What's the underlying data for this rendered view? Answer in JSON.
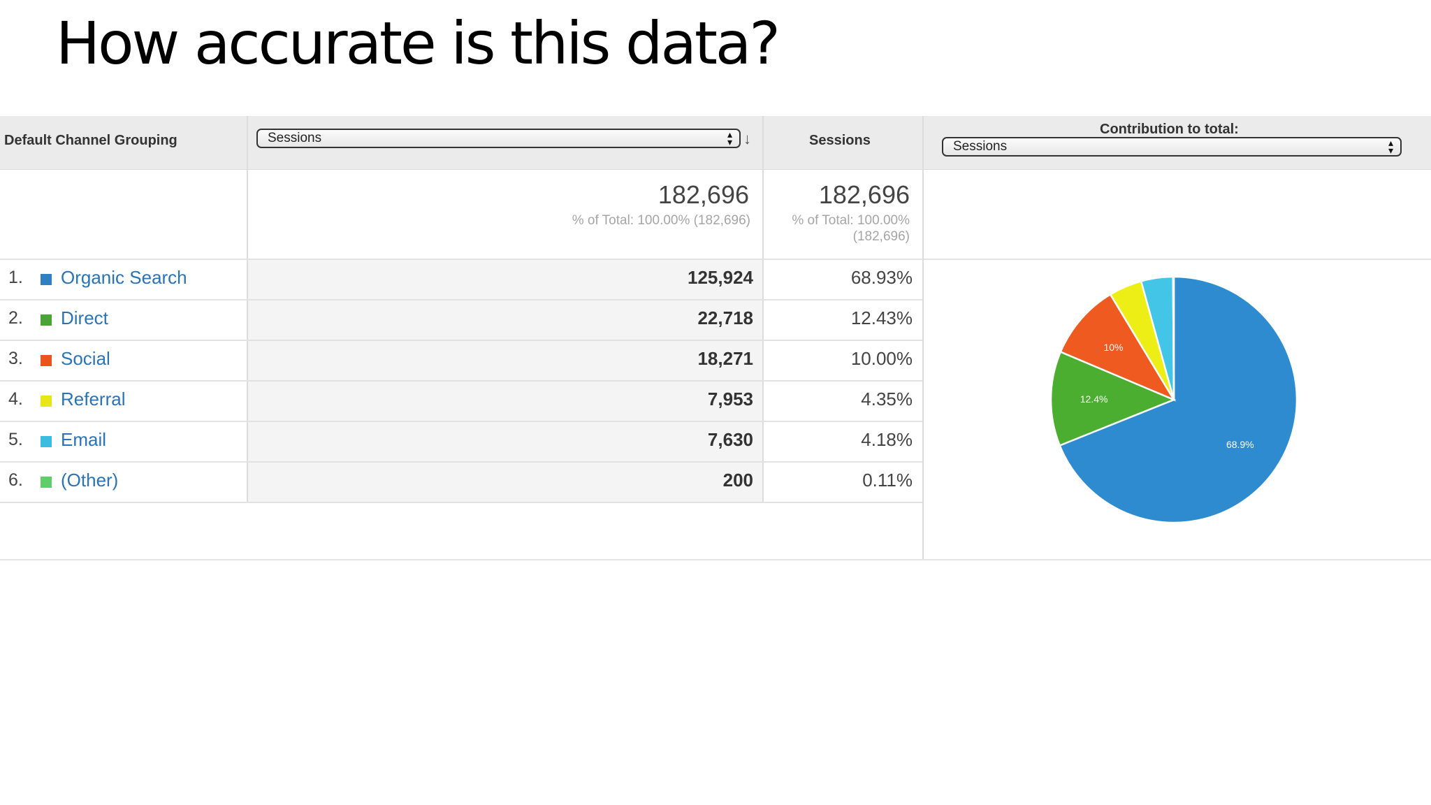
{
  "slide": {
    "title": "How accurate is this data?"
  },
  "report": {
    "dimension_header": "Default Channel Grouping",
    "metric_select": {
      "value": "Sessions",
      "arrows": "▲▼"
    },
    "sort_icon": "arrow-down-icon",
    "sessions_header": "Sessions",
    "contribution_header": "Contribution to total:",
    "contribution_select": {
      "value": "Sessions",
      "arrows": "▲▼"
    },
    "totals": {
      "metric_value": "182,696",
      "metric_sub": "% of Total: 100.00% (182,696)",
      "sessions_value": "182,696",
      "sessions_sub_line1": "% of Total: 100.00%",
      "sessions_sub_line2": "(182,696)"
    },
    "rows": [
      {
        "num": "1.",
        "name": "Organic Search",
        "color": "#2f7fc1",
        "value": "125,924",
        "pct": "68.93%"
      },
      {
        "num": "2.",
        "name": "Direct",
        "color": "#4aa336",
        "value": "22,718",
        "pct": "12.43%"
      },
      {
        "num": "3.",
        "name": "Social",
        "color": "#e8541c",
        "value": "18,271",
        "pct": "10.00%"
      },
      {
        "num": "4.",
        "name": "Referral",
        "color": "#e8e617",
        "value": "7,953",
        "pct": "4.35%"
      },
      {
        "num": "5.",
        "name": "Email",
        "color": "#3cbde0",
        "value": "7,630",
        "pct": "4.18%"
      },
      {
        "num": "6.",
        "name": "(Other)",
        "color": "#5fcd6a",
        "value": "200",
        "pct": "0.11%"
      }
    ]
  },
  "chart_data": {
    "type": "pie",
    "categories": [
      "Organic Search",
      "Direct",
      "Social",
      "Referral",
      "Email",
      "(Other)"
    ],
    "values": [
      68.93,
      12.43,
      10.0,
      4.35,
      4.18,
      0.11
    ],
    "colors": [
      "#2f8bd0",
      "#4bae31",
      "#ee5a1f",
      "#ecee16",
      "#42c5e6",
      "#5fcd6a"
    ],
    "slice_labels": [
      "68.9%",
      "12.4%",
      "10%",
      "",
      "",
      ""
    ]
  }
}
